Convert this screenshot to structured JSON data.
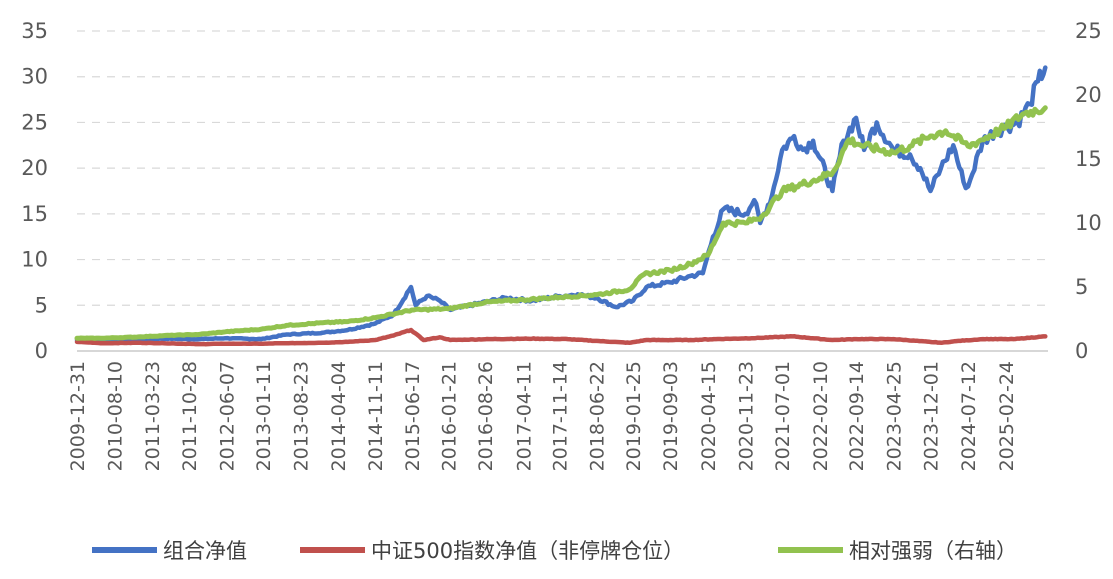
{
  "chart_data": {
    "type": "line",
    "title": "",
    "xlabel": "",
    "ylabel": "",
    "y_left": {
      "lim": [
        0,
        35
      ],
      "ticks": [
        0,
        5,
        10,
        15,
        20,
        25,
        30,
        35
      ],
      "labels": [
        "0",
        "5",
        "10",
        "15",
        "20",
        "25",
        "30",
        "35"
      ]
    },
    "y_right": {
      "lim": [
        0,
        25
      ],
      "ticks": [
        0,
        5,
        10,
        15,
        20,
        25
      ],
      "labels": [
        "0",
        "5",
        "10",
        "15",
        "20",
        "25"
      ]
    },
    "grid": true,
    "legend": "bottom",
    "x_range": [
      "2009-12-31",
      "2025-10-31"
    ],
    "x_tick_labels": [
      "2009-12-31",
      "2010-08-10",
      "2011-03-23",
      "2011-10-28",
      "2012-06-07",
      "2013-01-11",
      "2013-08-23",
      "2014-04-04",
      "2014-11-11",
      "2015-06-17",
      "2016-01-21",
      "2016-08-26",
      "2017-04-11",
      "2017-11-14",
      "2018-06-22",
      "2019-01-25",
      "2019-09-03",
      "2020-04-15",
      "2020-11-23",
      "2021-07-01",
      "2022-02-10",
      "2022-09-14",
      "2023-04-25",
      "2023-12-01",
      "2024-07-12",
      "2025-02-24"
    ],
    "series": [
      {
        "name": "组合净值",
        "axis": "left",
        "color": "#4472c4",
        "points": [
          [
            "2009-12-31",
            1.2
          ],
          [
            "2010-06-01",
            1.25
          ],
          [
            "2011-01-01",
            1.3
          ],
          [
            "2011-06-01",
            1.35
          ],
          [
            "2012-01-01",
            1.3
          ],
          [
            "2012-06-01",
            1.4
          ],
          [
            "2013-01-01",
            1.3
          ],
          [
            "2013-06-01",
            1.8
          ],
          [
            "2014-01-01",
            2.0
          ],
          [
            "2014-06-01",
            2.3
          ],
          [
            "2014-11-11",
            3.0
          ],
          [
            "2015-03-01",
            4.0
          ],
          [
            "2015-06-12",
            7.0
          ],
          [
            "2015-07-10",
            5.0
          ],
          [
            "2015-09-15",
            6.0
          ],
          [
            "2015-12-01",
            5.5
          ],
          [
            "2016-02-01",
            4.5
          ],
          [
            "2016-06-01",
            5.0
          ],
          [
            "2016-10-01",
            5.5
          ],
          [
            "2017-01-01",
            5.8
          ],
          [
            "2017-06-01",
            5.5
          ],
          [
            "2017-11-14",
            6.0
          ],
          [
            "2018-03-01",
            6.2
          ],
          [
            "2018-06-22",
            5.8
          ],
          [
            "2018-10-15",
            4.8
          ],
          [
            "2019-01-25",
            5.5
          ],
          [
            "2019-04-15",
            7.0
          ],
          [
            "2019-09-03",
            7.5
          ],
          [
            "2019-12-31",
            8.2
          ],
          [
            "2020-03-15",
            8.5
          ],
          [
            "2020-05-15",
            12.5
          ],
          [
            "2020-07-15",
            15.5
          ],
          [
            "2020-11-23",
            15.0
          ],
          [
            "2021-01-15",
            16.5
          ],
          [
            "2021-02-20",
            14.0
          ],
          [
            "2021-05-01",
            17.0
          ],
          [
            "2021-07-01",
            22.0
          ],
          [
            "2021-09-10",
            23.5
          ],
          [
            "2021-11-01",
            22.0
          ],
          [
            "2022-01-01",
            23.0
          ],
          [
            "2022-04-26",
            17.5
          ],
          [
            "2022-07-01",
            23.0
          ],
          [
            "2022-09-14",
            25.5
          ],
          [
            "2022-11-01",
            22.0
          ],
          [
            "2023-01-15",
            25.0
          ],
          [
            "2023-04-25",
            22.0
          ],
          [
            "2023-08-01",
            21.5
          ],
          [
            "2023-10-01",
            20.0
          ],
          [
            "2023-12-01",
            17.5
          ],
          [
            "2024-02-01",
            20.0
          ],
          [
            "2024-04-15",
            22.5
          ],
          [
            "2024-06-15",
            18.5
          ],
          [
            "2024-07-12",
            18.0
          ],
          [
            "2024-10-08",
            23.0
          ],
          [
            "2024-12-20",
            24.0
          ],
          [
            "2025-02-24",
            24.5
          ],
          [
            "2025-05-01",
            25.0
          ],
          [
            "2025-07-15",
            27.0
          ],
          [
            "2025-09-01",
            29.5
          ],
          [
            "2025-10-15",
            31.0
          ]
        ]
      },
      {
        "name": "中证500指数净值（非停牌仓位）",
        "axis": "left",
        "color": "#c0504d",
        "points": [
          [
            "2009-12-31",
            1.0
          ],
          [
            "2010-06-01",
            0.85
          ],
          [
            "2011-01-01",
            0.9
          ],
          [
            "2011-06-01",
            0.85
          ],
          [
            "2012-01-01",
            0.75
          ],
          [
            "2012-06-01",
            0.8
          ],
          [
            "2013-01-01",
            0.8
          ],
          [
            "2013-06-01",
            0.85
          ],
          [
            "2014-01-01",
            0.9
          ],
          [
            "2014-06-01",
            1.0
          ],
          [
            "2014-11-11",
            1.2
          ],
          [
            "2015-03-01",
            1.7
          ],
          [
            "2015-06-12",
            2.3
          ],
          [
            "2015-08-26",
            1.2
          ],
          [
            "2015-12-01",
            1.5
          ],
          [
            "2016-02-01",
            1.2
          ],
          [
            "2016-10-01",
            1.3
          ],
          [
            "2017-06-01",
            1.35
          ],
          [
            "2018-01-01",
            1.3
          ],
          [
            "2018-06-22",
            1.1
          ],
          [
            "2019-01-03",
            0.9
          ],
          [
            "2019-04-15",
            1.2
          ],
          [
            "2020-01-01",
            1.2
          ],
          [
            "2020-06-01",
            1.3
          ],
          [
            "2021-01-01",
            1.4
          ],
          [
            "2021-09-01",
            1.6
          ],
          [
            "2022-04-26",
            1.2
          ],
          [
            "2022-09-14",
            1.3
          ],
          [
            "2023-04-25",
            1.3
          ],
          [
            "2024-02-05",
            0.9
          ],
          [
            "2024-05-15",
            1.1
          ],
          [
            "2024-10-08",
            1.3
          ],
          [
            "2025-04-08",
            1.3
          ],
          [
            "2025-10-15",
            1.6
          ]
        ]
      },
      {
        "name": "相对强弱（右轴）",
        "axis": "right",
        "color": "#92c24f",
        "points": [
          [
            "2009-12-31",
            1.0
          ],
          [
            "2010-06-01",
            1.0
          ],
          [
            "2011-01-01",
            1.1
          ],
          [
            "2011-06-01",
            1.2
          ],
          [
            "2012-01-01",
            1.3
          ],
          [
            "2012-06-01",
            1.5
          ],
          [
            "2013-01-01",
            1.7
          ],
          [
            "2013-06-01",
            2.0
          ],
          [
            "2014-01-01",
            2.2
          ],
          [
            "2014-06-01",
            2.3
          ],
          [
            "2014-11-11",
            2.6
          ],
          [
            "2015-06-17",
            3.2
          ],
          [
            "2016-01-21",
            3.3
          ],
          [
            "2016-08-26",
            3.8
          ],
          [
            "2017-04-11",
            4.0
          ],
          [
            "2017-11-14",
            4.2
          ],
          [
            "2018-06-22",
            4.4
          ],
          [
            "2019-01-01",
            4.8
          ],
          [
            "2019-04-01",
            6.0
          ],
          [
            "2019-09-03",
            6.3
          ],
          [
            "2020-01-01",
            6.8
          ],
          [
            "2020-04-15",
            7.5
          ],
          [
            "2020-07-15",
            10.0
          ],
          [
            "2020-11-23",
            10.0
          ],
          [
            "2021-03-01",
            10.5
          ],
          [
            "2021-07-01",
            12.5
          ],
          [
            "2022-02-10",
            13.5
          ],
          [
            "2022-05-01",
            14.0
          ],
          [
            "2022-08-01",
            16.5
          ],
          [
            "2022-11-01",
            16.0
          ],
          [
            "2023-04-25",
            15.5
          ],
          [
            "2023-08-01",
            16.0
          ],
          [
            "2023-12-01",
            16.8
          ],
          [
            "2024-03-01",
            17.2
          ],
          [
            "2024-07-12",
            16.0
          ],
          [
            "2024-10-01",
            16.5
          ],
          [
            "2025-02-24",
            17.5
          ],
          [
            "2025-06-01",
            18.5
          ],
          [
            "2025-10-15",
            19.0
          ]
        ]
      }
    ]
  }
}
